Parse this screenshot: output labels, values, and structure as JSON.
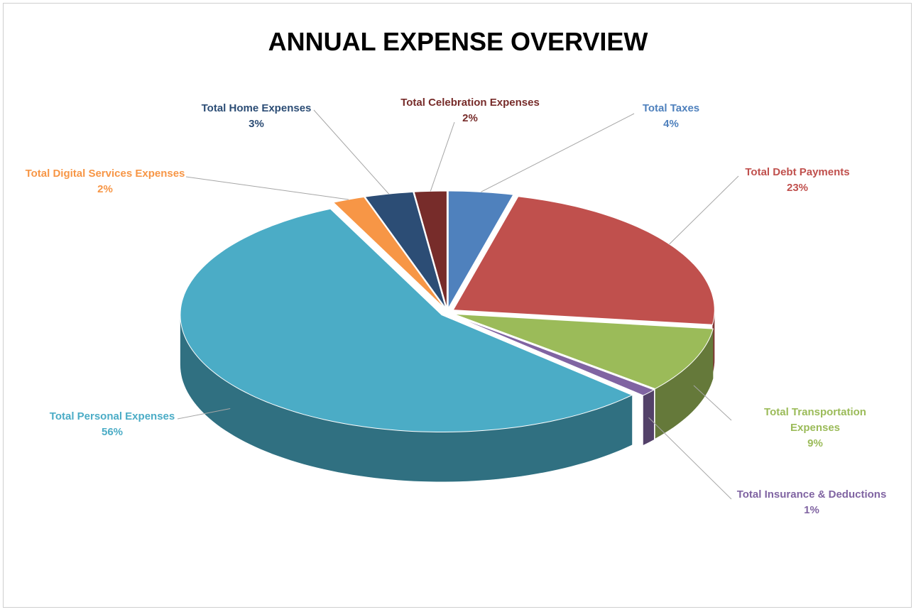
{
  "chart_data": {
    "type": "pie",
    "title": "ANNUAL EXPENSE OVERVIEW",
    "categories": [
      "Total Taxes",
      "Total Debt Payments",
      "Total Transportation Expenses",
      "Total Insurance & Deductions",
      "Total Personal Expenses",
      "Total Digital Services Expenses",
      "Total Home Expenses",
      "Total Celebration Expenses"
    ],
    "values": [
      4,
      23,
      9,
      1,
      56,
      2,
      3,
      2
    ],
    "value_labels": [
      "4%",
      "23%",
      "9%",
      "1%",
      "56%",
      "2%",
      "3%",
      "2%"
    ],
    "colors": [
      "#4f81bd",
      "#c0504d",
      "#9bbb59",
      "#8064a2",
      "#4bacc6",
      "#f79646",
      "#2c4d75",
      "#772c2a"
    ]
  }
}
